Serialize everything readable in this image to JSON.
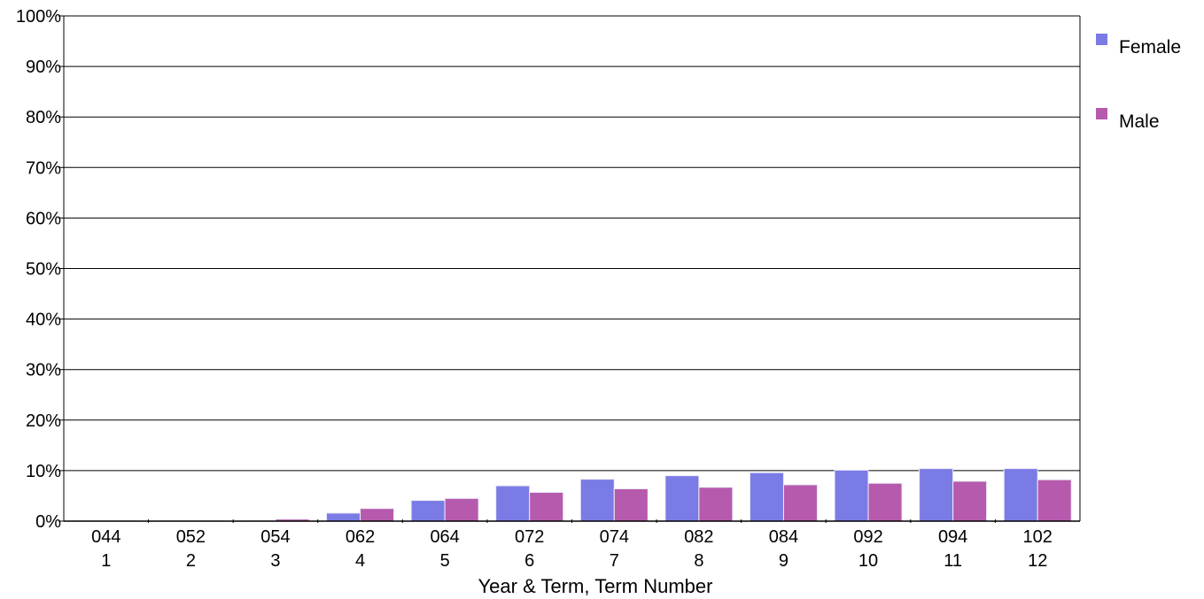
{
  "chart_data": {
    "type": "bar",
    "title": "",
    "xlabel": "Year & Term, Term Number",
    "ylabel": "",
    "ylim": [
      0,
      100
    ],
    "y_ticks": [
      "0%",
      "10%",
      "20%",
      "30%",
      "40%",
      "50%",
      "60%",
      "70%",
      "80%",
      "90%",
      "100%"
    ],
    "categories": [
      "044",
      "052",
      "054",
      "062",
      "064",
      "072",
      "074",
      "082",
      "084",
      "092",
      "094",
      "102"
    ],
    "term_numbers": [
      "1",
      "2",
      "3",
      "4",
      "5",
      "6",
      "7",
      "8",
      "9",
      "10",
      "11",
      "12"
    ],
    "series": [
      {
        "name": "Female",
        "color": "#7b7be6",
        "values": [
          0.1,
          0.1,
          0.1,
          1.6,
          4.1,
          7.0,
          8.3,
          9.0,
          9.6,
          10.1,
          10.4,
          10.4
        ]
      },
      {
        "name": "Male",
        "color": "#b65aad",
        "values": [
          0.1,
          0.1,
          0.4,
          2.5,
          4.5,
          5.7,
          6.4,
          6.7,
          7.2,
          7.5,
          7.9,
          8.2
        ]
      }
    ],
    "grid": true,
    "legend_position": "right"
  }
}
